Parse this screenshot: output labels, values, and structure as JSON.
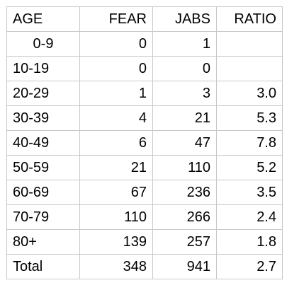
{
  "table": {
    "headers": {
      "age": "AGE",
      "fear": "FEAR",
      "jabs": "JABS",
      "ratio": "RATIO"
    },
    "rows": [
      {
        "age": "0-9",
        "fear": "0",
        "jabs": "1",
        "ratio": ""
      },
      {
        "age": "10-19",
        "fear": "0",
        "jabs": "0",
        "ratio": ""
      },
      {
        "age": "20-29",
        "fear": "1",
        "jabs": "3",
        "ratio": "3.0"
      },
      {
        "age": "30-39",
        "fear": "4",
        "jabs": "21",
        "ratio": "5.3"
      },
      {
        "age": "40-49",
        "fear": "6",
        "jabs": "47",
        "ratio": "7.8"
      },
      {
        "age": "50-59",
        "fear": "21",
        "jabs": "110",
        "ratio": "5.2"
      },
      {
        "age": "60-69",
        "fear": "67",
        "jabs": "236",
        "ratio": "3.5"
      },
      {
        "age": "70-79",
        "fear": "110",
        "jabs": "266",
        "ratio": "2.4"
      },
      {
        "age": "80+",
        "fear": "139",
        "jabs": "257",
        "ratio": "1.8"
      },
      {
        "age": "Total",
        "fear": "348",
        "jabs": "941",
        "ratio": "2.7"
      }
    ]
  }
}
